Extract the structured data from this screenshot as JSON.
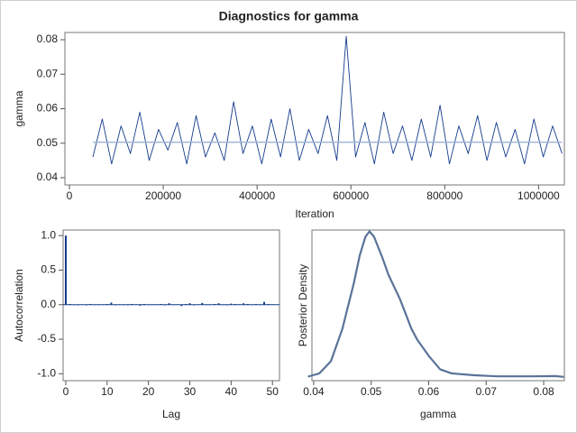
{
  "chart_data": [
    {
      "type": "line",
      "title": "Diagnostics for gamma",
      "xlabel": "Iteration",
      "ylabel": "gamma",
      "x": [
        50000,
        70000,
        90000,
        110000,
        130000,
        150000,
        170000,
        190000,
        210000,
        230000,
        250000,
        270000,
        290000,
        310000,
        330000,
        350000,
        370000,
        390000,
        410000,
        430000,
        450000,
        470000,
        490000,
        510000,
        530000,
        550000,
        570000,
        590000,
        610000,
        630000,
        650000,
        670000,
        690000,
        710000,
        730000,
        750000,
        770000,
        790000,
        810000,
        830000,
        850000,
        870000,
        890000,
        910000,
        930000,
        950000,
        970000,
        990000,
        1010000,
        1030000,
        1050000
      ],
      "series": [
        {
          "color": "#143c8c",
          "values": [
            0.046,
            0.057,
            0.044,
            0.055,
            0.047,
            0.059,
            0.045,
            0.054,
            0.048,
            0.056,
            0.044,
            0.058,
            0.046,
            0.053,
            0.045,
            0.062,
            0.047,
            0.055,
            0.044,
            0.057,
            0.046,
            0.06,
            0.045,
            0.054,
            0.047,
            0.058,
            0.045,
            0.081,
            0.046,
            0.056,
            0.044,
            0.059,
            0.047,
            0.055,
            0.045,
            0.057,
            0.046,
            0.061,
            0.044,
            0.055,
            0.047,
            0.058,
            0.045,
            0.056,
            0.046,
            0.054,
            0.044,
            0.057,
            0.046,
            0.055,
            0.047
          ]
        },
        {
          "color": "#9fb4d8",
          "x": [
            50000,
            1050000
          ],
          "values": [
            0.0503,
            0.0503
          ]
        }
      ],
      "xlim": [
        -9600,
        1055000
      ],
      "xticks": [
        0,
        200000,
        400000,
        600000,
        800000,
        1000000
      ],
      "ylim": [
        0.0379,
        0.0821
      ],
      "yticks": [
        0.04,
        0.05,
        0.06,
        0.07,
        0.08
      ]
    },
    {
      "type": "bar",
      "xlabel": "Lag",
      "ylabel": "Autocorrelation",
      "color": "#143c8c",
      "x": [
        0,
        1,
        2,
        3,
        4,
        5,
        6,
        7,
        8,
        9,
        10,
        11,
        12,
        13,
        14,
        15,
        16,
        17,
        18,
        19,
        20,
        21,
        22,
        23,
        24,
        25,
        26,
        27,
        28,
        29,
        30,
        31,
        32,
        33,
        34,
        35,
        36,
        37,
        38,
        39,
        40,
        41,
        42,
        43,
        44,
        45,
        46,
        47,
        48,
        49,
        50
      ],
      "values": [
        1.0,
        0.01,
        0.0,
        -0.01,
        0.005,
        -0.01,
        0.01,
        0,
        -0.005,
        0.005,
        0.01,
        0.03,
        -0.01,
        0.005,
        0,
        -0.01,
        0.01,
        0.005,
        -0.015,
        0.01,
        0,
        -0.005,
        0.005,
        0.01,
        -0.01,
        0.02,
        0,
        0.005,
        -0.02,
        0.01,
        0.02,
        -0.01,
        0.005,
        0.025,
        0,
        -0.005,
        0.01,
        0.02,
        0,
        -0.01,
        0.015,
        0.01,
        0.005,
        0.02,
        0.01,
        -0.005,
        0.01,
        0,
        0.04,
        0.01,
        0.005
      ],
      "xlim": [
        -0.65,
        51.7
      ],
      "xticks": [
        0,
        10,
        20,
        30,
        40,
        50
      ],
      "ylim": [
        -1.1,
        1.08
      ],
      "yticks": [
        {
          "value": 1,
          "label": "1.0"
        },
        {
          "value": 0.5,
          "label": "0.5"
        },
        {
          "value": 0,
          "label": "0.0"
        },
        {
          "value": -0.5,
          "label": "-0.5"
        },
        {
          "value": -1,
          "label": "-1.0"
        }
      ]
    },
    {
      "type": "line",
      "xlabel": "gamma",
      "ylabel": "Posterior Density",
      "x": [
        0.039,
        0.041,
        0.043,
        0.045,
        0.047,
        0.048,
        0.049,
        0.0497,
        0.0505,
        0.052,
        0.053,
        0.055,
        0.057,
        0.058,
        0.06,
        0.062,
        0.064,
        0.068,
        0.072,
        0.078,
        0.082,
        0.0835
      ],
      "series": [
        {
          "color": "#5b7399",
          "values": [
            0.3,
            1.5,
            6,
            18,
            35,
            45,
            52,
            54,
            52,
            44,
            38,
            29,
            18,
            14,
            8,
            3,
            1.5,
            0.8,
            0.4,
            0.4,
            0.5,
            0.2
          ]
        }
      ],
      "xlim": [
        0.0397,
        0.0836
      ],
      "xticks": [
        0.04,
        0.05,
        0.06,
        0.07,
        0.08
      ],
      "ylim": [
        -1.2,
        54.5
      ]
    }
  ]
}
